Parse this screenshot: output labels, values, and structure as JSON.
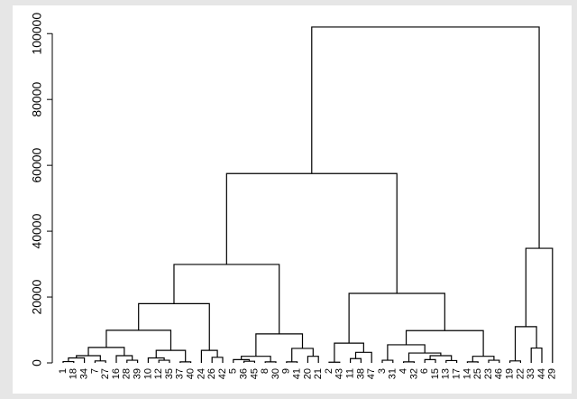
{
  "chart_data": {
    "type": "dendrogram",
    "color": "#000000",
    "ylim": [
      0,
      105000
    ],
    "yticks": [
      0,
      20000,
      40000,
      60000,
      80000,
      100000
    ],
    "tree": {
      "height": 102000,
      "children": [
        {
          "height": 57500,
          "children": [
            {
              "height": 29900,
              "children": [
                {
                  "height": 18000,
                  "children": [
                    {
                      "height": 9900,
                      "children": [
                        {
                          "height": 4700,
                          "children": [
                            {
                              "height": 2200,
                              "children": [
                                {
                                  "height": 1500,
                                  "children": [
                                    {
                                      "height": 400,
                                      "children": [
                                        "1",
                                        "18"
                                      ]
                                    },
                                    "34"
                                  ]
                                },
                                {
                                  "height": 600,
                                  "children": [
                                    "7",
                                    "27"
                                  ]
                                }
                              ]
                            },
                            {
                              "height": 2200,
                              "children": [
                                "16",
                                {
                                  "height": 800,
                                  "children": [
                                    "28",
                                    "39"
                                  ]
                                }
                              ]
                            }
                          ]
                        },
                        {
                          "height": 3800,
                          "children": [
                            {
                              "height": 1500,
                              "children": [
                                "10",
                                {
                                  "height": 800,
                                  "children": [
                                    "12",
                                    "35"
                                  ]
                                }
                              ]
                            },
                            {
                              "height": 300,
                              "children": [
                                "37",
                                "40"
                              ]
                            }
                          ]
                        }
                      ]
                    },
                    {
                      "height": 3800,
                      "children": [
                        "24",
                        {
                          "height": 1700,
                          "children": [
                            "26",
                            "42"
                          ]
                        }
                      ]
                    }
                  ]
                },
                {
                  "height": 8800,
                  "children": [
                    {
                      "height": 2000,
                      "children": [
                        {
                          "height": 1000,
                          "children": [
                            "5",
                            {
                              "height": 500,
                              "children": [
                                "36",
                                "45"
                              ]
                            }
                          ]
                        },
                        {
                          "height": 300,
                          "children": [
                            "8",
                            "30"
                          ]
                        }
                      ]
                    },
                    {
                      "height": 4400,
                      "children": [
                        {
                          "height": 300,
                          "children": [
                            "9",
                            "41"
                          ]
                        },
                        {
                          "height": 2000,
                          "children": [
                            "20",
                            "21"
                          ]
                        }
                      ]
                    }
                  ]
                }
              ]
            },
            {
              "height": 21100,
              "children": [
                {
                  "height": 6000,
                  "children": [
                    {
                      "height": 200,
                      "children": [
                        "2",
                        "43"
                      ]
                    },
                    {
                      "height": 3200,
                      "children": [
                        {
                          "height": 1300,
                          "children": [
                            "11",
                            "38"
                          ]
                        },
                        "47"
                      ]
                    }
                  ]
                },
                {
                  "height": 9800,
                  "children": [
                    {
                      "height": 5500,
                      "children": [
                        {
                          "height": 800,
                          "children": [
                            "3",
                            "31"
                          ]
                        },
                        {
                          "height": 3000,
                          "children": [
                            {
                              "height": 300,
                              "children": [
                                "4",
                                "32"
                              ]
                            },
                            {
                              "height": 2200,
                              "children": [
                                {
                                  "height": 1000,
                                  "children": [
                                    "6",
                                    "15"
                                  ]
                                },
                                {
                                  "height": 700,
                                  "children": [
                                    "13",
                                    "17"
                                  ]
                                }
                              ]
                            }
                          ]
                        }
                      ]
                    },
                    {
                      "height": 2000,
                      "children": [
                        {
                          "height": 300,
                          "children": [
                            "14",
                            "25"
                          ]
                        },
                        {
                          "height": 800,
                          "children": [
                            "23",
                            "46"
                          ]
                        }
                      ]
                    }
                  ]
                }
              ]
            }
          ]
        },
        {
          "height": 34800,
          "children": [
            {
              "height": 11000,
              "children": [
                {
                  "height": 600,
                  "children": [
                    "19",
                    "22"
                  ]
                },
                {
                  "height": 4500,
                  "children": [
                    "33",
                    "44"
                  ]
                }
              ]
            },
            "29"
          ]
        }
      ]
    }
  }
}
